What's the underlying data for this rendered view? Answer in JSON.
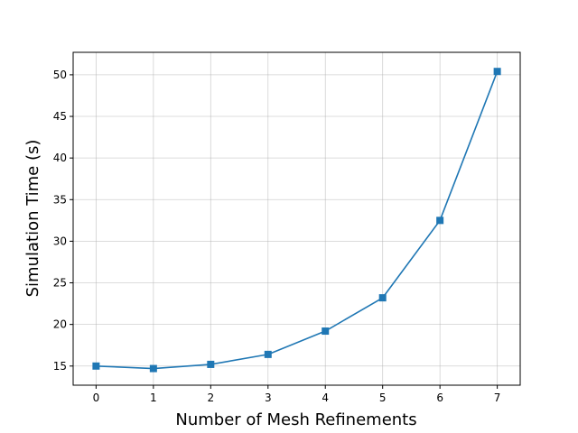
{
  "chart_data": {
    "type": "line",
    "title": "",
    "xlabel": "Number of Mesh Refinements",
    "ylabel": "Simulation Time (s)",
    "x": [
      0,
      1,
      2,
      3,
      4,
      5,
      6,
      7
    ],
    "series": [
      {
        "values": [
          15.0,
          14.7,
          15.2,
          16.4,
          19.2,
          23.2,
          32.5,
          50.4
        ],
        "marker": "square",
        "color": "#1f77b4"
      }
    ],
    "xlim": [
      -0.4,
      7.4
    ],
    "ylim": [
      12.7,
      52.7
    ],
    "xticks": [
      0,
      1,
      2,
      3,
      4,
      5,
      6,
      7
    ],
    "yticks": [
      15,
      20,
      25,
      30,
      35,
      40,
      45,
      50
    ],
    "grid": true,
    "legend": "none"
  }
}
